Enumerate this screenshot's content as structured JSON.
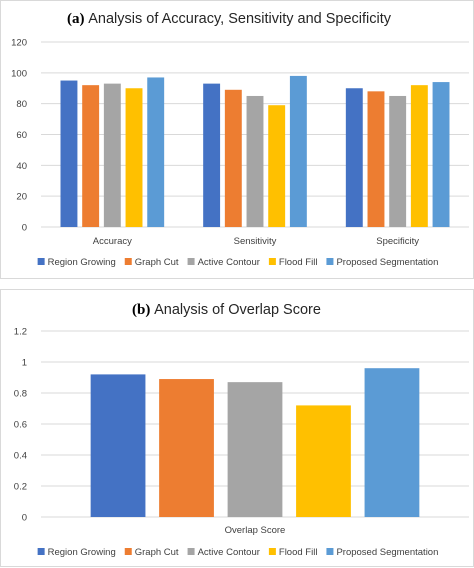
{
  "chart_data": [
    {
      "type": "bar",
      "title_letter": "(a)",
      "title": "Analysis of Accuracy, Sensitivity and Specificity",
      "categories": [
        "Accuracy",
        "Sensitivity",
        "Specificity"
      ],
      "series": [
        {
          "name": "Region Growing",
          "color": "#4472C4",
          "values": [
            95,
            93,
            90
          ]
        },
        {
          "name": "Graph Cut",
          "color": "#ED7D31",
          "values": [
            92,
            89,
            88
          ]
        },
        {
          "name": "Active Contour",
          "color": "#A5A5A5",
          "values": [
            93,
            85,
            85
          ]
        },
        {
          "name": "Flood Fill",
          "color": "#FFC000",
          "values": [
            90,
            79,
            92
          ]
        },
        {
          "name": "Proposed Segmentation",
          "color": "#5B9BD5",
          "values": [
            97,
            98,
            94
          ]
        }
      ],
      "yticks": [
        "0",
        "20",
        "40",
        "60",
        "80",
        "100",
        "120"
      ],
      "ylim": [
        0,
        120
      ],
      "grid": true,
      "legend": "bottom"
    },
    {
      "type": "bar",
      "title_letter": "(b)",
      "title": "Analysis of Overlap Score",
      "categories": [
        "Overlap Score"
      ],
      "series": [
        {
          "name": "Region Growing",
          "color": "#4472C4",
          "values": [
            0.92
          ]
        },
        {
          "name": "Graph Cut",
          "color": "#ED7D31",
          "values": [
            0.89
          ]
        },
        {
          "name": "Active Contour",
          "color": "#A5A5A5",
          "values": [
            0.87
          ]
        },
        {
          "name": "Flood Fill",
          "color": "#FFC000",
          "values": [
            0.72
          ]
        },
        {
          "name": "Proposed Segmentation",
          "color": "#5B9BD5",
          "values": [
            0.96
          ]
        }
      ],
      "yticks": [
        "0",
        "0.2",
        "0.4",
        "0.6",
        "0.8",
        "1",
        "1.2"
      ],
      "ylim": [
        0,
        1.2
      ],
      "grid": true,
      "legend": "bottom"
    }
  ]
}
